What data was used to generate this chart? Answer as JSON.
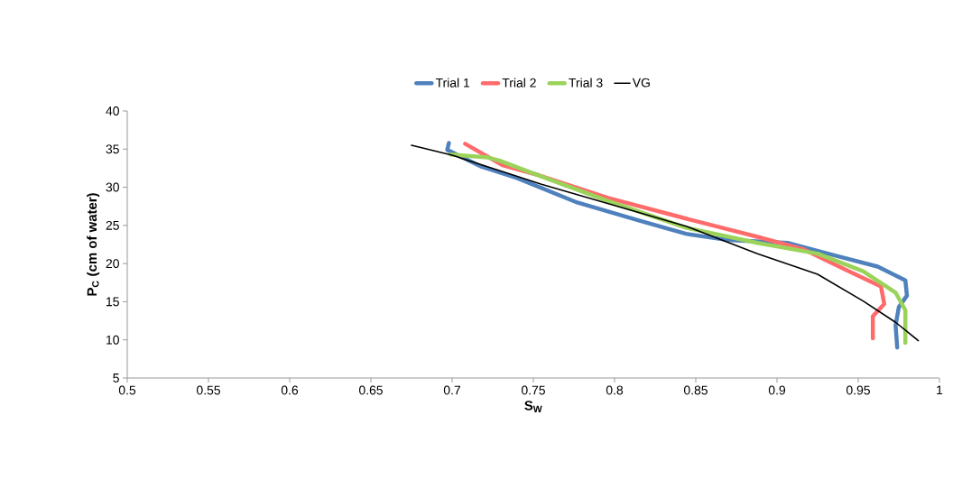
{
  "chart_data": {
    "type": "line",
    "xlabel": "S$_{W}$",
    "ylabel": "P$_{C}$ (cm of water)",
    "xlim": [
      0.5,
      1
    ],
    "ylim": [
      5,
      40
    ],
    "xticks": [
      0.5,
      0.55,
      0.6,
      0.65,
      0.7,
      0.75,
      0.8,
      0.85,
      0.9,
      0.95,
      1
    ],
    "yticks": [
      5,
      10,
      15,
      20,
      25,
      30,
      35,
      40
    ],
    "legend": "top",
    "grid": false,
    "marker": "none",
    "line_style": "solid",
    "series": [
      {
        "name": "Trial 1",
        "color": "#4f81bd",
        "x": [
          0.698,
          0.697,
          0.718,
          0.74,
          0.777,
          0.814,
          0.844,
          0.87,
          0.907,
          0.935,
          0.962,
          0.979,
          0.98,
          0.975,
          0.973,
          0.974
        ],
        "values": [
          35.8,
          34.9,
          32.7,
          31.2,
          28.0,
          25.7,
          23.9,
          23.1,
          22.7,
          21.1,
          19.6,
          17.8,
          15.8,
          14.3,
          11.9,
          9.0
        ]
      },
      {
        "name": "Trial 2",
        "color": "#ff6b6b",
        "x": [
          0.708,
          0.731,
          0.753,
          0.796,
          0.844,
          0.888,
          0.916,
          0.944,
          0.964,
          0.966,
          0.959,
          0.959
        ],
        "values": [
          35.7,
          32.9,
          31.6,
          28.6,
          25.9,
          23.5,
          21.9,
          19.0,
          17.0,
          14.7,
          13.1,
          10.2
        ]
      },
      {
        "name": "Trial 3",
        "color": "#9bd35a",
        "x": [
          0.699,
          0.722,
          0.729,
          0.755,
          0.796,
          0.844,
          0.888,
          0.925,
          0.953,
          0.973,
          0.979,
          0.979
        ],
        "values": [
          34.3,
          33.9,
          33.5,
          31.4,
          28.2,
          24.7,
          22.7,
          21.3,
          19.0,
          16.2,
          13.9,
          9.6
        ]
      },
      {
        "name": "VG",
        "color": "#000000",
        "x": [
          0.675,
          0.7,
          0.755,
          0.8,
          0.844,
          0.888,
          0.925,
          0.953,
          0.973,
          0.987
        ],
        "values": [
          35.5,
          34.2,
          30.4,
          27.6,
          24.9,
          21.3,
          18.6,
          15.1,
          12.3,
          9.9
        ]
      }
    ]
  }
}
